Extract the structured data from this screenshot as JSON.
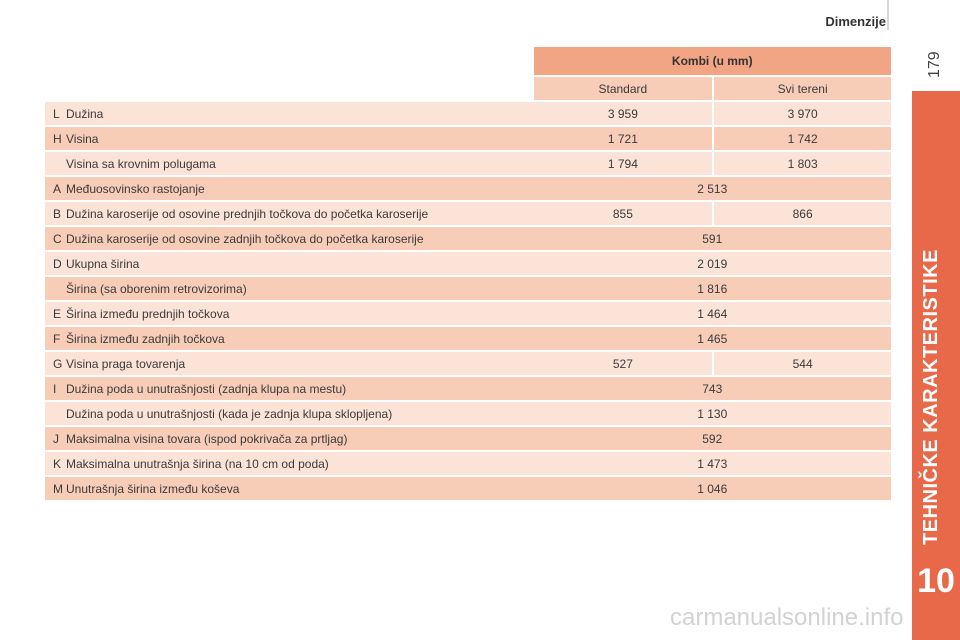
{
  "header": {
    "title": "Dimenzije"
  },
  "page_number": "179",
  "side_tab": {
    "label": "TEHNIČKE KARAKTERISTIKE",
    "chapter": "10"
  },
  "watermark": "carmanualsonline.info",
  "colors": {
    "accent": "#e8694a",
    "header_cell": "#f2a585",
    "row_dark": "#f8cdb8",
    "row_light": "#fce3d7"
  },
  "table": {
    "group_header": "Kombi (u mm)",
    "sub_headers": [
      "Standard",
      "Svi tereni"
    ],
    "rows": [
      {
        "letter": "L",
        "desc": "Dužina",
        "v1": "3 959",
        "v2": "3 970"
      },
      {
        "letter": "H",
        "desc": "Visina",
        "v1": "1 721",
        "v2": "1 742"
      },
      {
        "letter": "",
        "desc": "Visina sa krovnim polugama",
        "v1": "1 794",
        "v2": "1 803"
      },
      {
        "letter": "A",
        "desc": "Međuosovinsko rastojanje",
        "v": "2 513"
      },
      {
        "letter": "B",
        "desc": "Dužina karoserije od osovine prednjih točkova do početka karoserije",
        "v1": "855",
        "v2": "866"
      },
      {
        "letter": "C",
        "desc": "Dužina karoserije od osovine zadnjih točkova do početka karoserije",
        "v": "591"
      },
      {
        "letter": "D",
        "desc": "Ukupna širina",
        "v": "2 019"
      },
      {
        "letter": "",
        "desc": "Širina (sa oborenim retrovizorima)",
        "v": "1 816"
      },
      {
        "letter": "E",
        "desc": "Širina između prednjih točkova",
        "v": "1 464"
      },
      {
        "letter": "F",
        "desc": "Širina između zadnjih točkova",
        "v": "1 465"
      },
      {
        "letter": "G",
        "desc": "Visina praga tovarenja",
        "v1": "527",
        "v2": "544"
      },
      {
        "letter": "I",
        "desc": "Dužina poda u unutrašnjosti (zadnja klupa na mestu)",
        "v": "743"
      },
      {
        "letter": "",
        "desc": "Dužina poda u unutrašnjosti (kada je zadnja klupa sklopljena)",
        "v": "1 130"
      },
      {
        "letter": "J",
        "desc": "Maksimalna visina tovara (ispod pokrivača za prtljag)",
        "v": "592"
      },
      {
        "letter": "K",
        "desc": "Maksimalna unutrašnja širina (na 10 cm od poda)",
        "v": "1 473"
      },
      {
        "letter": "M",
        "desc": "Unutrašnja širina između koševa",
        "v": "1 046"
      }
    ]
  }
}
